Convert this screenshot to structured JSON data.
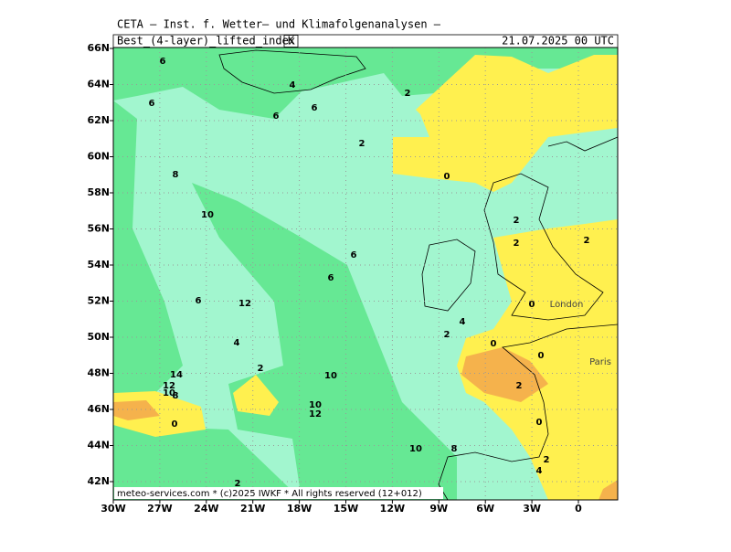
{
  "header": {
    "institute": "CETA — Inst. f. Wetter— und Klimafolgenanalysen —",
    "parameter": "Best_(4-layer)_lifted_index",
    "unit": "K",
    "valid_time": "21.07.2025 00 UTC"
  },
  "map": {
    "lat_labels": [
      "66N",
      "64N",
      "62N",
      "60N",
      "58N",
      "56N",
      "54N",
      "52N",
      "50N",
      "48N",
      "46N",
      "44N",
      "42N"
    ],
    "lon_labels": [
      "30W",
      "27W",
      "24W",
      "21W",
      "18W",
      "15W",
      "12W",
      "9W",
      "6W",
      "3W",
      "0"
    ],
    "contour_labels": [
      "6",
      "4",
      "6",
      "6",
      "6",
      "2",
      "2",
      "0",
      "8",
      "10",
      "2",
      "2",
      "2",
      "6",
      "6",
      "6",
      "12",
      "0",
      "4",
      "2",
      "4",
      "0",
      "0",
      "2",
      "14",
      "10",
      "12",
      "10",
      "8",
      "2",
      "10",
      "12",
      "0",
      "0",
      "10",
      "8",
      "2",
      "2",
      "4"
    ],
    "place_labels": [
      "London",
      "Paris"
    ]
  },
  "footer": "meteo-services.com * (c)2025 IWKF * All rights reserved (12+012)"
}
